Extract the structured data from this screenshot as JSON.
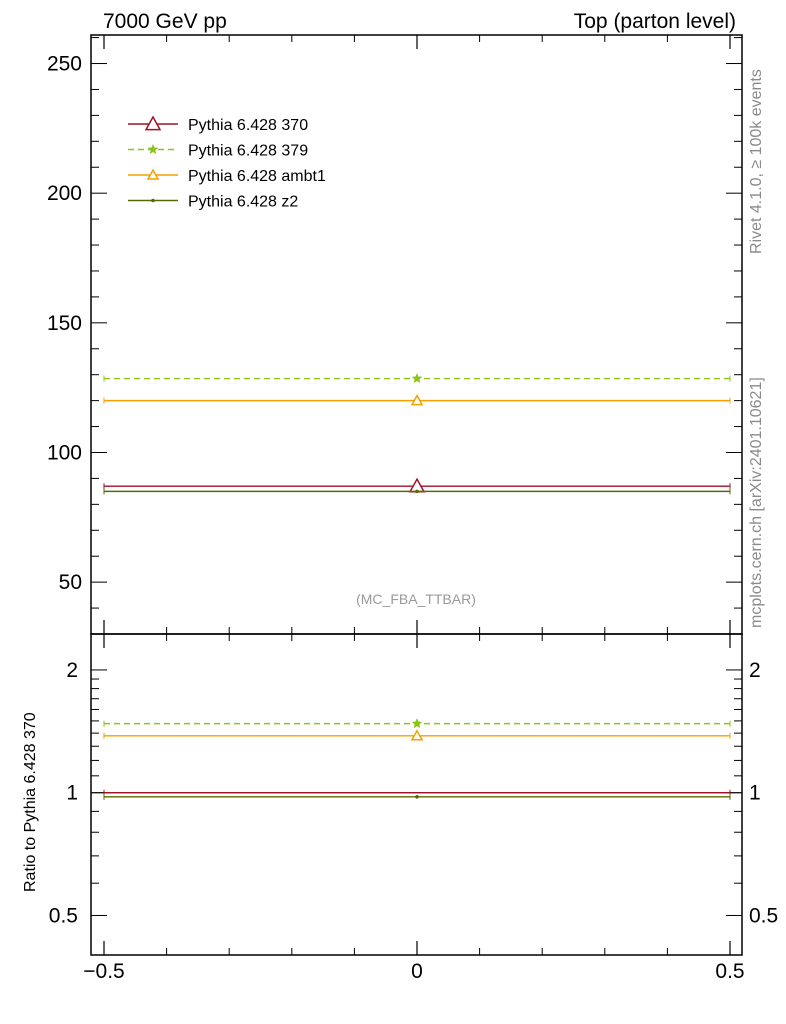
{
  "header": {
    "left": "7000 GeV pp",
    "right": "Top (parton level)"
  },
  "side_text": {
    "rivet": "Rivet 4.1.0, ≥ 100k events",
    "mcplots": "mcplots.cern.ch [arXiv:2401.10621]"
  },
  "annotation": "(MC_FBA_TTBAR)",
  "ratio_ylabel": "Ratio to Pythia 6.428 370",
  "chart_data": [
    {
      "type": "line",
      "panel": "main",
      "x": [
        0
      ],
      "xlim": [
        -0.5,
        0.5
      ],
      "ylim": [
        30,
        261
      ],
      "x_ticks": [
        "−0.5",
        "0",
        "0.5"
      ],
      "y_ticks": [
        "50",
        "100",
        "150",
        "200",
        "250"
      ],
      "legend_position": "top-left",
      "series": [
        {
          "name": "Pythia 6.428 370",
          "values": [
            87
          ],
          "color": "#a0102a",
          "marker": "triangle-open",
          "dash": "solid"
        },
        {
          "name": "Pythia 6.428 379",
          "values": [
            128.5
          ],
          "color": "#8cc41a",
          "marker": "star",
          "dash": "dashed"
        },
        {
          "name": "Pythia 6.428 ambt1",
          "values": [
            120
          ],
          "color": "#f5a000",
          "marker": "triangle-open",
          "dash": "solid"
        },
        {
          "name": "Pythia 6.428 z2",
          "values": [
            85
          ],
          "color": "#5a6a00",
          "marker": "dot",
          "dash": "solid"
        }
      ]
    },
    {
      "type": "line",
      "panel": "ratio",
      "x": [
        0
      ],
      "xlim": [
        -0.5,
        0.5
      ],
      "ylim": [
        0.4,
        2.45
      ],
      "y_scale": "log",
      "y_ticks": [
        "0.5",
        "1",
        "2"
      ],
      "ylabel": "Ratio to Pythia 6.428 370",
      "series": [
        {
          "name": "Pythia 6.428 370",
          "values": [
            1.0
          ],
          "color": "#a0102a",
          "marker": "none",
          "dash": "solid"
        },
        {
          "name": "Pythia 6.428 379",
          "values": [
            1.477
          ],
          "color": "#8cc41a",
          "marker": "star",
          "dash": "dashed"
        },
        {
          "name": "Pythia 6.428 ambt1",
          "values": [
            1.379
          ],
          "color": "#f5a000",
          "marker": "triangle-open",
          "dash": "solid"
        },
        {
          "name": "Pythia 6.428 z2",
          "values": [
            0.977
          ],
          "color": "#5a6a00",
          "marker": "dot",
          "dash": "solid"
        }
      ]
    }
  ]
}
